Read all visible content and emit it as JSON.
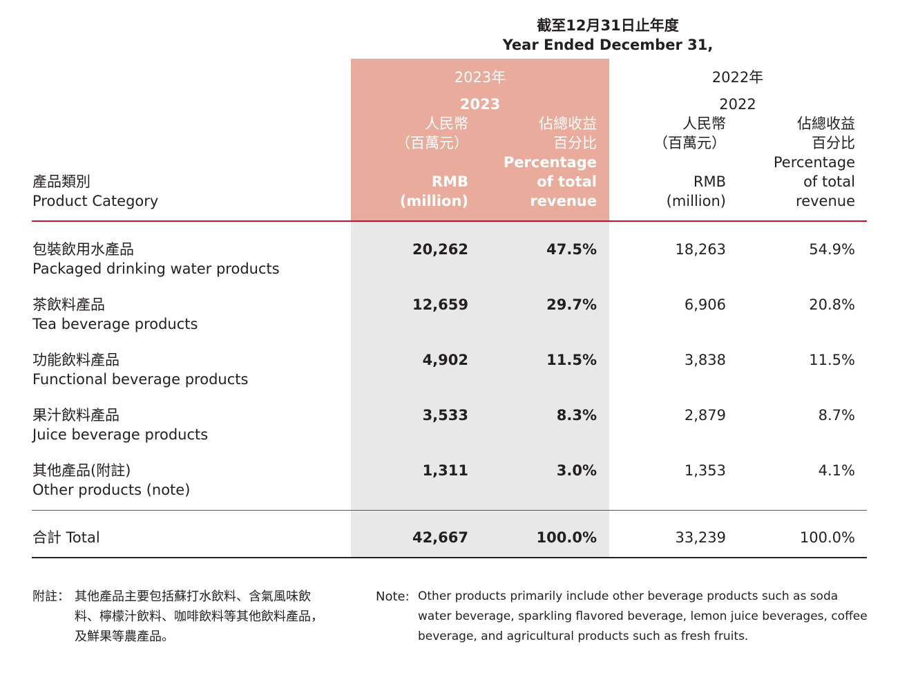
{
  "period_header": {
    "zh": "截至12月31日止年度",
    "en": "Year Ended December 31,"
  },
  "years": {
    "y2023": {
      "zh": "2023年",
      "en": "2023"
    },
    "y2022": {
      "zh": "2022年",
      "en": "2022"
    }
  },
  "col_labels": {
    "rmb_zh_1": "人民幣",
    "rmb_zh_2": "（百萬元）",
    "rmb_en_1": "RMB",
    "rmb_en_2": "(million)",
    "pct_zh_1": "佔總收益",
    "pct_zh_2": "百分比",
    "pct_en_1": "Percentage",
    "pct_en_2": "of total",
    "pct_en_3": "revenue"
  },
  "category_header": {
    "zh": "產品類別",
    "en": "Product Category"
  },
  "rows": [
    {
      "zh": "包裝飲用水產品",
      "en": "Packaged drinking water products",
      "rmb_2023": "20,262",
      "pct_2023": "47.5%",
      "rmb_2022": "18,263",
      "pct_2022": "54.9%"
    },
    {
      "zh": "茶飲料產品",
      "en": "Tea beverage products",
      "rmb_2023": "12,659",
      "pct_2023": "29.7%",
      "rmb_2022": "6,906",
      "pct_2022": "20.8%"
    },
    {
      "zh": "功能飲料產品",
      "en": "Functional beverage products",
      "rmb_2023": "4,902",
      "pct_2023": "11.5%",
      "rmb_2022": "3,838",
      "pct_2022": "11.5%"
    },
    {
      "zh": "果汁飲料產品",
      "en": "Juice beverage products",
      "rmb_2023": "3,533",
      "pct_2023": "8.3%",
      "rmb_2022": "2,879",
      "pct_2022": "8.7%"
    },
    {
      "zh": "其他產品(附註)",
      "en": "Other products (note)",
      "rmb_2023": "1,311",
      "pct_2023": "3.0%",
      "rmb_2022": "1,353",
      "pct_2022": "4.1%"
    }
  ],
  "total": {
    "label": "合計 Total",
    "rmb_2023": "42,667",
    "pct_2023": "100.0%",
    "rmb_2022": "33,239",
    "pct_2022": "100.0%"
  },
  "notes": {
    "zh_prefix": "附註：",
    "zh_line1": "其他產品主要包括蘇打水飲料、含氣風味飲",
    "zh_line2": "料、檸檬汁飲料、咖啡飲料等其他飲料產品，",
    "zh_line3": "及鮮果等農產品。",
    "en_prefix": "Note:",
    "en_line1": "Other products primarily include other beverage products such as soda",
    "en_line2": "water beverage, sparkling flavored beverage, lemon juice beverages, coffee",
    "en_line3": "beverage, and agricultural products such as fresh fruits."
  },
  "colors": {
    "accent_shade": "#e9ab9b",
    "body_shade": "#e8e8e8",
    "rule_red": "#c8102e"
  }
}
